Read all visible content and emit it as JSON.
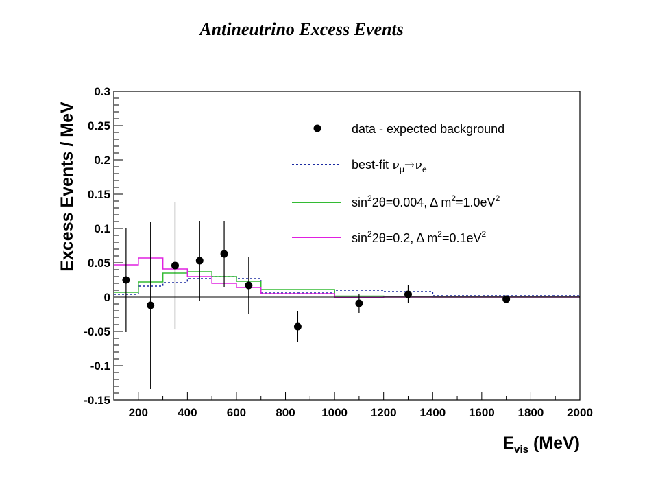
{
  "title": "Antineutrino Excess Events",
  "chart_data": {
    "type": "scatter",
    "title": "Antineutrino Excess Events",
    "xlabel": {
      "main": "E",
      "sub": "vis",
      "tail": " (MeV)"
    },
    "ylabel": "Excess Events / MeV",
    "xlim": [
      100,
      2000
    ],
    "ylim": [
      -0.15,
      0.3
    ],
    "xticks": [
      200,
      400,
      600,
      800,
      1000,
      1200,
      1400,
      1600,
      1800,
      2000
    ],
    "yticks": [
      -0.15,
      -0.1,
      -0.05,
      0,
      0.05,
      0.1,
      0.15,
      0.2,
      0.25,
      0.3
    ],
    "ytick_labels": [
      "-0.15",
      "-0.1",
      "-0.05",
      "0",
      "0.05",
      "0.1",
      "0.15",
      "0.2",
      "0.25",
      "0.3"
    ],
    "xtick_labels": [
      "200",
      "400",
      "600",
      "800",
      "1000",
      "1200",
      "1400",
      "1600",
      "1800",
      "2000"
    ],
    "grid": false,
    "legend_position": "top-right",
    "data_points": [
      {
        "x": 150,
        "y": 0.025,
        "err": 0.076
      },
      {
        "x": 250,
        "y": -0.012,
        "err": 0.122
      },
      {
        "x": 350,
        "y": 0.046,
        "err": 0.092
      },
      {
        "x": 450,
        "y": 0.053,
        "err": 0.058
      },
      {
        "x": 550,
        "y": 0.063,
        "err": 0.048
      },
      {
        "x": 650,
        "y": 0.017,
        "err": 0.042
      },
      {
        "x": 850,
        "y": -0.043,
        "err": 0.022
      },
      {
        "x": 1100,
        "y": -0.009,
        "err": 0.014
      },
      {
        "x": 1300,
        "y": 0.004,
        "err": 0.013
      },
      {
        "x": 1700,
        "y": -0.003,
        "err": 0.005
      }
    ],
    "bin_edges": [
      100,
      200,
      300,
      400,
      500,
      600,
      700,
      1000,
      1200,
      1400,
      2000
    ],
    "series": [
      {
        "name": "best-fit",
        "color": "#1a2aa0",
        "dashed": true,
        "values": [
          0.004,
          0.016,
          0.021,
          0.027,
          0.03,
          0.027,
          0.006,
          0.01,
          0.008,
          0.002
        ]
      },
      {
        "name": "sin²2θ=0.004, Δ m²=1.0eV²",
        "color": "#33bb33",
        "dashed": false,
        "values": [
          0.007,
          0.022,
          0.035,
          0.037,
          0.03,
          0.023,
          0.011,
          0.0015,
          0.0005,
          0.0002
        ]
      },
      {
        "name": "sin²2θ=0.2, Δ m²=0.1eV²",
        "color": "#e020e0",
        "dashed": false,
        "values": [
          0.047,
          0.057,
          0.041,
          0.03,
          0.02,
          0.014,
          0.005,
          -0.001,
          0.0,
          0.0
        ]
      }
    ],
    "legend": {
      "data": "data - expected background",
      "bestfit_prefix": "best-fit ",
      "bestfit_nu1": "ν",
      "bestfit_sub1": "μ",
      "bestfit_arrow": "→",
      "bestfit_nu2": "ν",
      "bestfit_sub2": "e",
      "green": {
        "a": "sin",
        "sup1": "2",
        "b": "2θ=0.004, Δ m",
        "sup2": "2",
        "c": "=1.0eV",
        "sup3": "2"
      },
      "magenta": {
        "a": "sin",
        "sup1": "2",
        "b": "2θ=0.2, Δ m",
        "sup2": "2",
        "c": "=0.1eV",
        "sup3": "2"
      }
    }
  }
}
